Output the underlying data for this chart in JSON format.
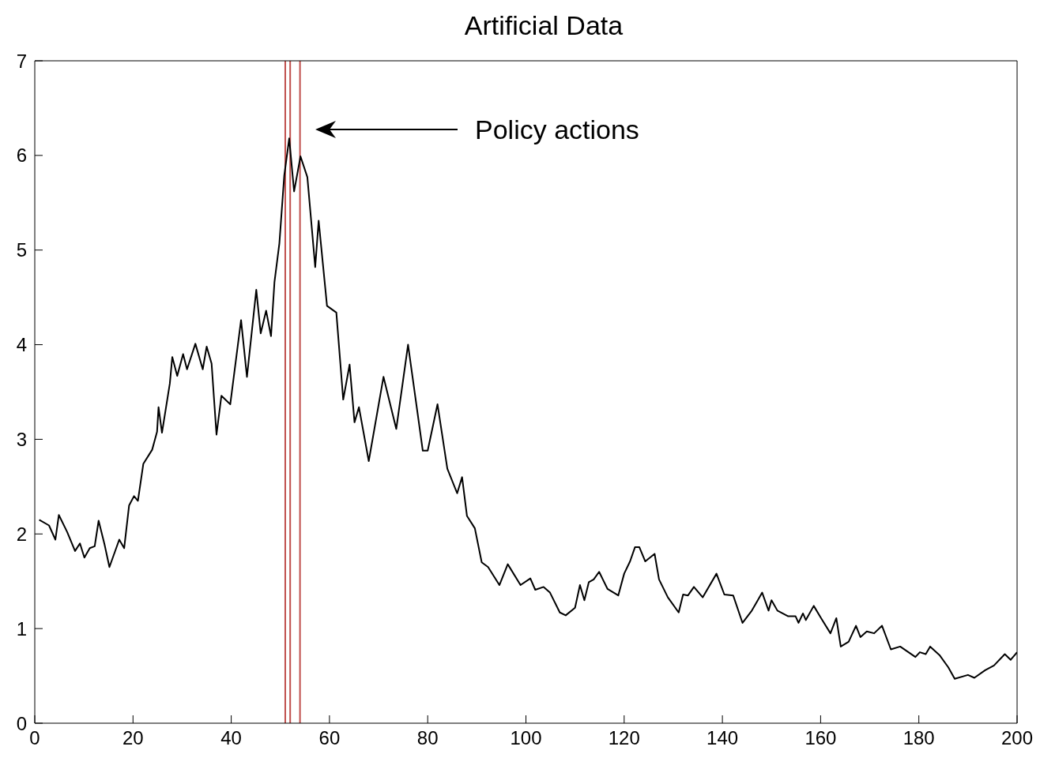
{
  "chart_data": {
    "type": "line",
    "title": "Artificial Data",
    "x": [
      0.9,
      2.9,
      4.2,
      4.9,
      6.6,
      8.2,
      9.2,
      10.1,
      11.2,
      12.2,
      13,
      14.2,
      15.2,
      17.2,
      18.2,
      19.2,
      20.2,
      21,
      22.1,
      23.9,
      24.9,
      25.2,
      25.9,
      27.5,
      28,
      29,
      30.2,
      31,
      32.7,
      34.2,
      35,
      36,
      37,
      38,
      39.8,
      42,
      43.2,
      45.1,
      46,
      47.1,
      48.1,
      48.8,
      49.8,
      50.8,
      51.8,
      52.8,
      54.1,
      55.5,
      57.1,
      57.8,
      59.5,
      61.4,
      62.8,
      64.1,
      65.1,
      66,
      68,
      71,
      73.6,
      76,
      79,
      80,
      82,
      84,
      86,
      87,
      88,
      89.6,
      91,
      92.3,
      94.6,
      96.3,
      98.9,
      100.9,
      101.9,
      103.6,
      104.9,
      106.9,
      108.1,
      110,
      111,
      111.9,
      112.8,
      113.8,
      114.9,
      116.6,
      118.8,
      120,
      121.2,
      122.2,
      123.1,
      124.3,
      126.2,
      127.1,
      128.9,
      131.1,
      132,
      133,
      134.2,
      136,
      138.8,
      140.4,
      142.2,
      144.1,
      146,
      148.1,
      149.4,
      150,
      151.2,
      153.4,
      154.9,
      155.5,
      156.4,
      157,
      158.6,
      160.1,
      162,
      163.2,
      164.1,
      165.7,
      167.2,
      168.1,
      169.4,
      170.9,
      172.5,
      174.3,
      176.2,
      179.3,
      180.2,
      181.4,
      182.3,
      184.2,
      186,
      187.3,
      190,
      191.3,
      193.5,
      195.3,
      197.5,
      198.7,
      200
    ],
    "series": [
      {
        "color": "#000000",
        "values": [
          2.15,
          2.09,
          1.94,
          2.2,
          2.02,
          1.82,
          1.9,
          1.75,
          1.85,
          1.87,
          2.14,
          1.89,
          1.65,
          1.94,
          1.85,
          2.3,
          2.4,
          2.35,
          2.74,
          2.89,
          3.08,
          3.34,
          3.07,
          3.59,
          3.87,
          3.67,
          3.9,
          3.74,
          4.01,
          3.74,
          3.98,
          3.8,
          3.05,
          3.46,
          3.37,
          4.26,
          3.66,
          4.58,
          4.12,
          4.36,
          4.09,
          4.66,
          5.07,
          5.79,
          6.18,
          5.62,
          5.99,
          5.77,
          4.82,
          5.31,
          4.41,
          4.34,
          3.42,
          3.79,
          3.18,
          3.34,
          2.77,
          3.66,
          3.11,
          4.0,
          2.88,
          2.88,
          3.37,
          2.69,
          2.43,
          2.6,
          2.19,
          2.06,
          1.7,
          1.65,
          1.46,
          1.68,
          1.46,
          1.53,
          1.41,
          1.44,
          1.38,
          1.17,
          1.14,
          1.22,
          1.46,
          1.3,
          1.49,
          1.52,
          1.6,
          1.42,
          1.35,
          1.58,
          1.71,
          1.86,
          1.86,
          1.71,
          1.79,
          1.52,
          1.33,
          1.17,
          1.36,
          1.35,
          1.44,
          1.33,
          1.58,
          1.36,
          1.35,
          1.06,
          1.19,
          1.38,
          1.19,
          1.3,
          1.19,
          1.13,
          1.13,
          1.06,
          1.16,
          1.09,
          1.24,
          1.11,
          0.95,
          1.11,
          0.81,
          0.86,
          1.03,
          0.91,
          0.97,
          0.95,
          1.03,
          0.78,
          0.81,
          0.7,
          0.75,
          0.73,
          0.81,
          0.72,
          0.59,
          0.47,
          0.51,
          0.48,
          0.56,
          0.61,
          0.73,
          0.67,
          0.75
        ]
      }
    ],
    "xlim": [
      0,
      200
    ],
    "xticks": [
      0,
      20,
      40,
      60,
      80,
      100,
      120,
      140,
      160,
      180,
      200
    ],
    "ylim": [
      0,
      7
    ],
    "yticks": [
      0,
      1,
      2,
      3,
      4,
      5,
      6,
      7
    ],
    "ref_lines": [
      {
        "axis": "x",
        "value": 51,
        "color": "#c0504d"
      },
      {
        "axis": "x",
        "value": 52,
        "color": "#c0504d"
      },
      {
        "axis": "x",
        "value": 54,
        "color": "#c0504d"
      }
    ],
    "annotations": [
      "Policy actions"
    ],
    "grid": false,
    "marker": "none",
    "line_style": "solid"
  }
}
